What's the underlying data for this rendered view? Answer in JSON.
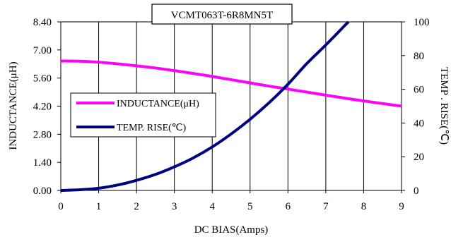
{
  "chart_data": {
    "type": "line",
    "title": "VCMT063T-6R8MN5T",
    "xlabel": "DC BIAS(Amps)",
    "ylabel": "INDUCTANCE(μH)",
    "y2label": "TEMP . RISE(℃)",
    "xlim": [
      0,
      9
    ],
    "ylim": [
      0,
      8.4
    ],
    "y2lim": [
      0,
      100
    ],
    "x_ticks": [
      "0",
      "1",
      "2",
      "3",
      "4",
      "5",
      "6",
      "7",
      "8",
      "9"
    ],
    "y_ticks": [
      "0.00",
      "1.40",
      "2.80",
      "4.20",
      "5.60",
      "7.00",
      "8.40"
    ],
    "y2_ticks": [
      "0",
      "20",
      "40",
      "60",
      "80",
      "100"
    ],
    "legend_position": "left-middle",
    "grid": "vertical",
    "series": [
      {
        "name": "INDUCTANCE(μH)",
        "axis": "left",
        "color": "#ff00ff",
        "x": [
          0,
          0.5,
          1,
          1.5,
          2,
          2.5,
          3,
          3.5,
          4,
          4.5,
          5,
          5.5,
          6,
          6.5,
          7,
          7.5,
          8,
          8.5,
          9
        ],
        "y": [
          6.45,
          6.44,
          6.39,
          6.31,
          6.21,
          6.1,
          5.97,
          5.83,
          5.68,
          5.52,
          5.36,
          5.2,
          5.05,
          4.9,
          4.75,
          4.6,
          4.46,
          4.33,
          4.2
        ]
      },
      {
        "name": "TEMP. RISE(℃)",
        "axis": "right",
        "color": "#000080",
        "x": [
          0,
          0.5,
          1,
          1.5,
          2,
          2.5,
          3,
          3.5,
          4,
          4.5,
          5,
          5.5,
          6,
          6.5,
          7,
          7.5,
          7.6
        ],
        "y": [
          0,
          0.4,
          1.3,
          3.2,
          6,
          9.5,
          14,
          19.3,
          25.8,
          33.5,
          42.2,
          52,
          63,
          75.3,
          86.3,
          97.8,
          100
        ]
      }
    ]
  }
}
